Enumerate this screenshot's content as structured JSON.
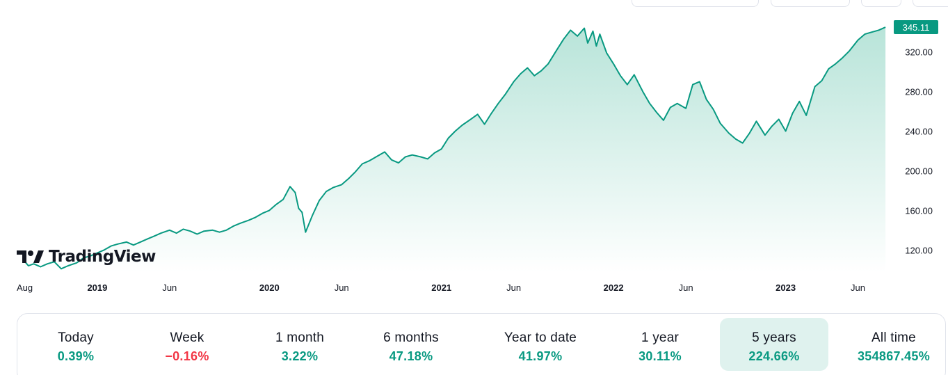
{
  "colors": {
    "line": "#089981",
    "area_top": "#b8e4d9",
    "area_bottom": "#ffffff",
    "positive": "#089981",
    "negative": "#f23645",
    "active_bg": "#dff2ee"
  },
  "logo": {
    "text": "TradingView",
    "icon": "tradingview-logo-icon"
  },
  "chart_data": {
    "type": "area",
    "y_ticks": [
      120,
      160,
      200,
      240,
      280,
      320
    ],
    "y_tick_labels": [
      "120.00",
      "160.00",
      "200.00",
      "240.00",
      "280.00",
      "320.00"
    ],
    "ylim": [
      97,
      350
    ],
    "xlim": [
      2018.58,
      2023.6
    ],
    "x_ticks": [
      {
        "x": 2018.58,
        "label": "Aug",
        "bold": false
      },
      {
        "x": 2019.0,
        "label": "2019",
        "bold": true
      },
      {
        "x": 2019.42,
        "label": "Jun",
        "bold": false
      },
      {
        "x": 2020.0,
        "label": "2020",
        "bold": true
      },
      {
        "x": 2020.42,
        "label": "Jun",
        "bold": false
      },
      {
        "x": 2021.0,
        "label": "2021",
        "bold": true
      },
      {
        "x": 2021.42,
        "label": "Jun",
        "bold": false
      },
      {
        "x": 2022.0,
        "label": "2022",
        "bold": true
      },
      {
        "x": 2022.42,
        "label": "Jun",
        "bold": false
      },
      {
        "x": 2023.0,
        "label": "2023",
        "bold": true
      },
      {
        "x": 2023.42,
        "label": "Jun",
        "bold": false
      }
    ],
    "last_price": 345.11,
    "last_price_label": "345.11",
    "series": [
      {
        "x": [
          2018.58,
          2018.6,
          2018.63,
          2018.67,
          2018.71,
          2018.75,
          2018.79,
          2018.83,
          2018.88,
          2018.92,
          2018.96,
          2019.0,
          2019.04,
          2019.08,
          2019.12,
          2019.17,
          2019.21,
          2019.25,
          2019.29,
          2019.33,
          2019.37,
          2019.42,
          2019.46,
          2019.5,
          2019.54,
          2019.58,
          2019.62,
          2019.67,
          2019.71,
          2019.75,
          2019.79,
          2019.83,
          2019.88,
          2019.92,
          2019.96,
          2020.0,
          2020.04,
          2020.08,
          2020.12,
          2020.15,
          2020.17,
          2020.19,
          2020.21,
          2020.25,
          2020.29,
          2020.33,
          2020.37,
          2020.42,
          2020.46,
          2020.5,
          2020.54,
          2020.58,
          2020.62,
          2020.67,
          2020.71,
          2020.75,
          2020.79,
          2020.83,
          2020.88,
          2020.92,
          2020.96,
          2021.0,
          2021.04,
          2021.08,
          2021.12,
          2021.17,
          2021.21,
          2021.25,
          2021.29,
          2021.33,
          2021.37,
          2021.42,
          2021.46,
          2021.5,
          2021.54,
          2021.58,
          2021.62,
          2021.67,
          2021.71,
          2021.75,
          2021.79,
          2021.83,
          2021.85,
          2021.88,
          2021.9,
          2021.92,
          2021.96,
          2022.0,
          2022.04,
          2022.08,
          2022.12,
          2022.17,
          2022.21,
          2022.25,
          2022.29,
          2022.33,
          2022.37,
          2022.42,
          2022.46,
          2022.5,
          2022.54,
          2022.58,
          2022.62,
          2022.67,
          2022.71,
          2022.75,
          2022.79,
          2022.83,
          2022.88,
          2022.92,
          2022.96,
          2023.0,
          2023.04,
          2023.08,
          2023.12,
          2023.17,
          2023.21,
          2023.25,
          2023.29,
          2023.33,
          2023.37,
          2023.42,
          2023.46,
          2023.5,
          2023.54,
          2023.58
        ],
        "y": [
          108,
          104,
          106,
          103,
          106,
          108,
          101,
          104,
          107,
          112,
          114,
          117,
          120,
          124,
          126,
          128,
          125,
          128,
          131,
          134,
          137,
          140,
          137,
          141,
          139,
          136,
          139,
          140,
          138,
          140,
          144,
          147,
          150,
          153,
          157,
          160,
          166,
          171,
          184,
          178,
          162,
          158,
          138,
          155,
          170,
          179,
          183,
          186,
          192,
          199,
          207,
          210,
          214,
          219,
          211,
          208,
          214,
          216,
          214,
          212,
          218,
          222,
          233,
          240,
          246,
          252,
          257,
          247,
          258,
          268,
          277,
          290,
          298,
          304,
          296,
          301,
          308,
          322,
          333,
          342,
          336,
          344,
          329,
          341,
          326,
          338,
          319,
          308,
          296,
          287,
          297,
          280,
          268,
          259,
          251,
          264,
          268,
          263,
          287,
          290,
          272,
          262,
          248,
          238,
          232,
          228,
          238,
          250,
          236,
          245,
          252,
          240,
          258,
          270,
          256,
          285,
          291,
          303,
          308,
          314,
          321,
          332,
          338,
          340,
          342,
          345
        ]
      }
    ]
  },
  "performance": [
    {
      "label": "Today",
      "value": "0.39%",
      "sign": "pos",
      "active": false
    },
    {
      "label": "Week",
      "value": "−0.16%",
      "sign": "neg",
      "active": false
    },
    {
      "label": "1 month",
      "value": "3.22%",
      "sign": "pos",
      "active": false
    },
    {
      "label": "6 months",
      "value": "47.18%",
      "sign": "pos",
      "active": false
    },
    {
      "label": "Year to date",
      "value": "41.97%",
      "sign": "pos",
      "active": false
    },
    {
      "label": "1 year",
      "value": "30.11%",
      "sign": "pos",
      "active": false
    },
    {
      "label": "5 years",
      "value": "224.66%",
      "sign": "pos",
      "active": true
    },
    {
      "label": "All time",
      "value": "354867.45%",
      "sign": "pos",
      "active": false
    }
  ]
}
